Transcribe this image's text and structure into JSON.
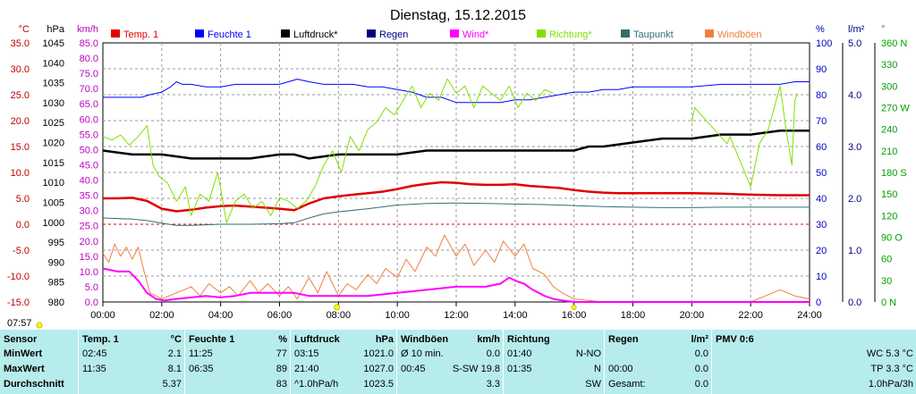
{
  "chart_data": {
    "type": "line",
    "title": "Dienstag, 15.12.2015",
    "x_ticks": [
      "00:00",
      "02:00",
      "04:00",
      "06:00",
      "08:00",
      "10:00",
      "12:00",
      "14:00",
      "16:00",
      "18:00",
      "20:00",
      "22:00",
      "24:00"
    ],
    "x_range": [
      0,
      24
    ],
    "axes": {
      "temp": {
        "unit": "°C",
        "range": [
          -15,
          35
        ],
        "ticks": [
          "35.0",
          "30.0",
          "25.0",
          "20.0",
          "15.0",
          "10.0",
          "5.0",
          "0.0",
          "-5.0",
          "-10.0",
          "-15.0"
        ],
        "color": "#c00000"
      },
      "hpa": {
        "unit": "hPa",
        "range": [
          980,
          1045
        ],
        "ticks": [
          "1045",
          "1040",
          "1035",
          "1030",
          "1025",
          "1020",
          "1015",
          "1010",
          "1005",
          "1000",
          "995",
          "990",
          "985",
          "980"
        ],
        "color": "#000000"
      },
      "kmh": {
        "unit": "km/h",
        "range": [
          0,
          85
        ],
        "ticks": [
          "85.0",
          "80.0",
          "75.0",
          "70.0",
          "65.0",
          "60.0",
          "55.0",
          "50.0",
          "45.0",
          "40.0",
          "35.0",
          "30.0",
          "25.0",
          "20.0",
          "15.0",
          "10.0",
          "5.0",
          "0.0"
        ],
        "color": "#c000c0"
      },
      "pct": {
        "unit": "%",
        "range": [
          0,
          100
        ],
        "ticks": [
          "100",
          "90",
          "80",
          "70",
          "60",
          "50",
          "40",
          "30",
          "20",
          "10",
          "0"
        ],
        "color": "#0000c0"
      },
      "rain": {
        "unit": "l/m²",
        "range": [
          0,
          5
        ],
        "ticks": [
          "5.0",
          "4.0",
          "3.0",
          "2.0",
          "1.0",
          "0.0"
        ],
        "color": "#000080"
      },
      "dir": {
        "unit": "°",
        "range": [
          0,
          360
        ],
        "ticks": [
          "360 N",
          "330",
          "300",
          "270 W",
          "240",
          "210",
          "180 S",
          "150",
          "120",
          "90 O",
          "60",
          "30",
          "0 N"
        ],
        "color": "#00a000"
      }
    },
    "legend": [
      {
        "label": "Temp. 1",
        "color": "#e00000"
      },
      {
        "label": "Feuchte 1",
        "color": "#0000ff"
      },
      {
        "label": "Luftdruck*",
        "color": "#000000"
      },
      {
        "label": "Regen",
        "color": "#000080"
      },
      {
        "label": "Wind*",
        "color": "#ff00ff"
      },
      {
        "label": "Richtung*",
        "color": "#80e000"
      },
      {
        "label": "Taupunkt",
        "color": "#307070"
      },
      {
        "label": "Windböen",
        "color": "#f08040"
      }
    ],
    "series": [
      {
        "name": "Temp. 1",
        "axis": "temp",
        "color": "#e00000",
        "width": 2.5,
        "x": [
          0,
          0.5,
          1,
          1.5,
          2,
          2.5,
          3,
          3.5,
          4,
          4.5,
          5,
          5.5,
          6,
          6.5,
          7,
          7.5,
          8,
          8.5,
          9,
          9.5,
          10,
          10.5,
          11,
          11.5,
          12,
          12.5,
          13,
          13.5,
          14,
          14.5,
          15,
          15.5,
          16,
          16.5,
          17,
          17.5,
          18,
          19,
          20,
          21,
          22,
          23,
          24
        ],
        "y": [
          5,
          5,
          5.1,
          4.5,
          3,
          2.5,
          2.8,
          3.2,
          3.5,
          3.6,
          3.4,
          3.2,
          3,
          2.7,
          4,
          5,
          5.4,
          5.7,
          6,
          6.3,
          6.8,
          7.4,
          7.8,
          8.1,
          8,
          7.7,
          7.6,
          7.6,
          7.7,
          7.4,
          7.2,
          7,
          6.6,
          6.3,
          6.1,
          6,
          6,
          6,
          6,
          5.9,
          5.7,
          5.6,
          5.6
        ]
      },
      {
        "name": "Feuchte 1",
        "axis": "pct",
        "color": "#0000ff",
        "width": 1,
        "x": [
          0,
          0.5,
          1,
          1.3,
          1.6,
          2,
          2.3,
          2.5,
          2.7,
          3,
          3.5,
          4,
          4.5,
          5,
          5.5,
          6,
          6.3,
          6.6,
          7,
          7.5,
          8,
          8.5,
          9,
          9.5,
          10,
          10.5,
          11,
          11.5,
          12,
          12.5,
          13,
          13.5,
          14,
          14.5,
          15,
          15.5,
          16,
          16.5,
          17,
          17.5,
          18,
          19,
          20,
          21,
          22,
          23,
          23.5,
          24
        ],
        "y": [
          79,
          79,
          79,
          79,
          80,
          81,
          83,
          85,
          84,
          84,
          83,
          83,
          84,
          84,
          84,
          84,
          85,
          86,
          85,
          84,
          84,
          84,
          83,
          83,
          82,
          81,
          79,
          79,
          77,
          77,
          77,
          77,
          78,
          78,
          79,
          80,
          81,
          81,
          82,
          82,
          83,
          83,
          83,
          84,
          84,
          84,
          85,
          85
        ]
      },
      {
        "name": "Luftdruck*",
        "axis": "hpa",
        "color": "#000000",
        "width": 2.5,
        "x": [
          0,
          1,
          2,
          3,
          4,
          5,
          6,
          6.5,
          7,
          8,
          9,
          10,
          11,
          12,
          13,
          14,
          15,
          16,
          16.5,
          17,
          18,
          19,
          20,
          21,
          22,
          23,
          24
        ],
        "y": [
          1018,
          1017,
          1017,
          1016,
          1016,
          1016,
          1017,
          1017,
          1016,
          1017,
          1017,
          1017,
          1018,
          1018,
          1018,
          1018,
          1018,
          1018,
          1019,
          1019,
          1020,
          1021,
          1021,
          1022,
          1022,
          1023,
          1023
        ]
      },
      {
        "name": "Taupunkt",
        "axis": "temp",
        "color": "#307070",
        "width": 1,
        "x": [
          0,
          1,
          1.5,
          2,
          2.5,
          3,
          4,
          5,
          6,
          6.5,
          7,
          7.5,
          8,
          9,
          10,
          11,
          12,
          13,
          14,
          15,
          16,
          17,
          18,
          19,
          20,
          21,
          22,
          23,
          24
        ],
        "y": [
          1.2,
          1,
          0.7,
          0.2,
          -0.2,
          -0.2,
          0,
          0,
          0.1,
          0.3,
          1.2,
          2,
          2.4,
          3,
          3.7,
          4,
          4.1,
          4,
          3.9,
          3.8,
          3.6,
          3.4,
          3.3,
          3.2,
          3.2,
          3.3,
          3.3,
          3.3,
          3.3
        ]
      },
      {
        "name": "Windböen",
        "axis": "kmh",
        "color": "#f08040",
        "width": 1,
        "x": [
          0,
          0.2,
          0.4,
          0.6,
          0.8,
          1,
          1.2,
          1.4,
          1.6,
          1.8,
          2,
          2.5,
          3,
          3.3,
          3.6,
          4,
          4.3,
          4.6,
          5,
          5.3,
          5.6,
          6,
          6.3,
          6.6,
          7,
          7.3,
          7.6,
          8,
          8.3,
          8.6,
          9,
          9.3,
          9.6,
          10,
          10.3,
          10.6,
          11,
          11.3,
          11.6,
          12,
          12.3,
          12.6,
          13,
          13.3,
          13.6,
          14,
          14.3,
          14.6,
          15,
          15.3,
          15.6,
          16,
          17,
          18,
          19,
          20,
          21,
          22,
          22.5,
          23,
          23.5,
          24
        ],
        "y": [
          16,
          13,
          19,
          15,
          18,
          14,
          18,
          10,
          3,
          2,
          1,
          3,
          5,
          2,
          6,
          3,
          5,
          2,
          7,
          3,
          6,
          2,
          5,
          1,
          8,
          3,
          10,
          2,
          6,
          4,
          9,
          6,
          11,
          8,
          14,
          10,
          18,
          15,
          22,
          15,
          19,
          12,
          17,
          13,
          20,
          15,
          19,
          11,
          9,
          5,
          3,
          1,
          0,
          0,
          0,
          0,
          0,
          0,
          2,
          4,
          2,
          1
        ]
      },
      {
        "name": "Wind*",
        "axis": "kmh",
        "color": "#ff00ff",
        "width": 2,
        "x": [
          0,
          0.5,
          0.9,
          1.2,
          1.5,
          1.8,
          2.1,
          2.5,
          3,
          3.5,
          4,
          4.5,
          5,
          5.5,
          6,
          6.5,
          7,
          7.5,
          8,
          8.5,
          9,
          9.5,
          10,
          10.5,
          11,
          11.5,
          12,
          12.5,
          13,
          13.5,
          13.8,
          14,
          14.3,
          14.6,
          15,
          15.3,
          15.6,
          16,
          17,
          18,
          19,
          20,
          21,
          22,
          23,
          24
        ],
        "y": [
          11,
          10,
          10,
          7,
          3,
          1,
          0.5,
          1,
          1.5,
          2,
          1.5,
          2,
          3,
          3,
          3,
          3,
          2,
          2,
          2,
          2,
          2,
          2.5,
          3,
          3.5,
          4,
          4.5,
          5,
          5,
          5,
          6,
          8,
          7,
          6,
          4,
          2,
          1,
          0.5,
          0,
          0,
          0,
          0,
          0,
          0,
          0,
          0,
          0
        ]
      },
      {
        "name": "Richtung*",
        "axis": "dir",
        "color": "#80e000",
        "width": 1,
        "x": [
          0,
          0.3,
          0.6,
          0.9,
          1.2,
          1.5,
          1.7,
          1.9,
          2.2,
          2.5,
          2.8,
          3,
          3.3,
          3.6,
          3.9,
          4.2,
          4.5,
          4.8,
          5.1,
          5.4,
          5.7,
          6,
          6.3,
          6.6,
          6.9,
          7.2,
          7.5,
          7.8,
          8.1,
          8.4,
          8.7,
          9,
          9.3,
          9.6,
          9.9,
          10.2,
          10.5,
          10.8,
          11.1,
          11.4,
          11.7,
          12,
          12.3,
          12.6,
          12.9,
          13.2,
          13.5,
          13.8,
          14.1,
          14.4,
          14.7,
          15,
          15.3
        ],
        "y": [
          230,
          225,
          232,
          218,
          230,
          245,
          190,
          175,
          165,
          140,
          160,
          120,
          150,
          140,
          180,
          110,
          140,
          150,
          130,
          140,
          120,
          145,
          140,
          130,
          140,
          160,
          190,
          210,
          180,
          230,
          210,
          240,
          250,
          270,
          260,
          280,
          300,
          270,
          290,
          280,
          310,
          290,
          300,
          270,
          300,
          290,
          280,
          300,
          270,
          290,
          280,
          295,
          290
        ]
      },
      {
        "name": "Richtung* (Abend)",
        "axis": "dir",
        "color": "#80e000",
        "width": 1,
        "x": [
          20.0,
          20.1,
          21.2,
          21.3,
          22.0,
          22.3,
          22.6,
          23.0,
          23.2,
          23.4,
          23.5,
          23.6
        ],
        "y": [
          250,
          270,
          220,
          230,
          160,
          220,
          240,
          300,
          240,
          190,
          280,
          290
        ]
      }
    ]
  },
  "marker_time": "07:57",
  "stats": {
    "rowlabels": [
      "Sensor",
      "MinWert",
      "MaxWert",
      "Durchschnitt"
    ],
    "cols": [
      {
        "h": "Temp. 1",
        "u": "°C",
        "r1a": "02:45",
        "r1b": "2.1",
        "r2a": "11:35",
        "r2b": "8.1",
        "r3a": "",
        "r3b": "5.37"
      },
      {
        "h": "Feuchte 1",
        "u": "%",
        "r1a": "11:25",
        "r1b": "77",
        "r2a": "06:35",
        "r2b": "89",
        "r3a": "",
        "r3b": "83"
      },
      {
        "h": "Luftdruck",
        "u": "hPa",
        "r1a": "03:15",
        "r1b": "1021.0",
        "r2a": "21:40",
        "r2b": "1027.0",
        "r3a": "^1.0hPa/h",
        "r3b": "1023.5"
      },
      {
        "h": "Windböen",
        "u": "km/h",
        "r1a": "Ø 10 min.",
        "r1b": "0.0",
        "r2a": "00:45",
        "r2b": "S-SW 19.8",
        "r3a": "",
        "r3b": "3.3"
      },
      {
        "h": "Richtung",
        "u": "",
        "r1a": "01:40",
        "r1b": "N-NO",
        "r2a": "01:35",
        "r2b": "N",
        "r3a": "",
        "r3b": "SW"
      },
      {
        "h": "Regen",
        "u": "l/m²",
        "r1a": "",
        "r1b": "0.0",
        "r2a": "00:00",
        "r2b": "0.0",
        "r3a": "Gesamt:",
        "r3b": "0.0"
      },
      {
        "h": "PMV 0:6",
        "u": "",
        "r1a": "",
        "r1b": "WC 5.3 °C",
        "r2a": "",
        "r2b": "TP 3.3 °C",
        "r3a": "",
        "r3b": "1.0hPa/3h"
      }
    ]
  }
}
